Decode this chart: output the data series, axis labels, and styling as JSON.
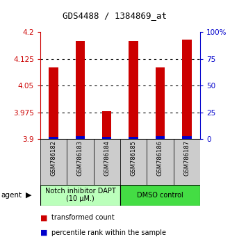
{
  "title": "GDS4488 / 1384869_at",
  "samples": [
    "GSM786182",
    "GSM786183",
    "GSM786184",
    "GSM786185",
    "GSM786186",
    "GSM786187"
  ],
  "red_values": [
    4.1,
    4.175,
    3.978,
    4.175,
    4.1,
    4.178
  ],
  "blue_values": [
    3.906,
    3.908,
    3.906,
    3.906,
    3.907,
    3.908
  ],
  "y_min": 3.9,
  "y_max": 4.2,
  "y_ticks": [
    3.9,
    3.975,
    4.05,
    4.125,
    4.2
  ],
  "right_tick_labels": [
    "0",
    "25",
    "50",
    "75",
    "100%"
  ],
  "bar_width": 0.35,
  "groups": [
    {
      "label": "Notch inhibitor DAPT\n(10 μM.)",
      "start": 0,
      "end": 3,
      "color": "#bbffbb"
    },
    {
      "label": "DMSO control",
      "start": 3,
      "end": 6,
      "color": "#44dd44"
    }
  ],
  "agent_label": "agent",
  "legend_red": "transformed count",
  "legend_blue": "percentile rank within the sample",
  "red_color": "#cc0000",
  "blue_color": "#0000cc",
  "left_axis_color": "#cc0000",
  "right_axis_color": "#0000cc",
  "sample_bg": "#cccccc",
  "title_fontsize": 9,
  "tick_fontsize": 7.5,
  "sample_fontsize": 6,
  "group_fontsize": 7,
  "legend_fontsize": 7
}
